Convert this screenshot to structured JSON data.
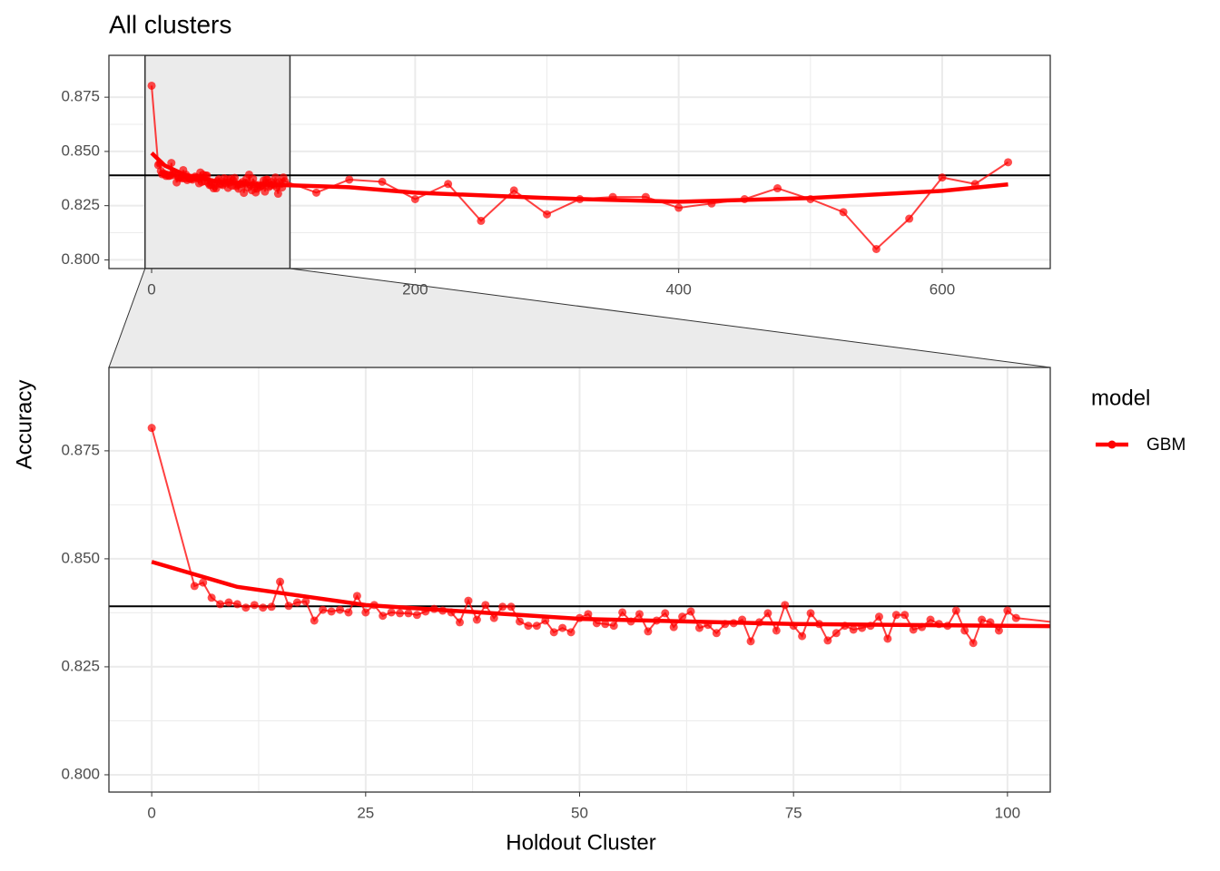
{
  "chart_data": {
    "type": "line",
    "title": "All clusters",
    "x_label": "Holdout Cluster",
    "y_label": "Accuracy",
    "legend_title": "model",
    "series": [
      {
        "name": "GBM",
        "color": "#ff0000",
        "x": [
          0,
          5,
          6,
          7,
          8,
          9,
          10,
          11,
          12,
          13,
          14,
          15,
          16,
          17,
          18,
          19,
          20,
          21,
          22,
          23,
          24,
          25,
          26,
          27,
          28,
          29,
          30,
          31,
          32,
          33,
          34,
          35,
          36,
          37,
          38,
          39,
          40,
          41,
          42,
          43,
          44,
          45,
          46,
          47,
          48,
          49,
          50,
          51,
          52,
          53,
          54,
          55,
          56,
          57,
          58,
          59,
          60,
          61,
          62,
          63,
          64,
          65,
          66,
          67,
          68,
          69,
          70,
          71,
          72,
          73,
          74,
          75,
          76,
          77,
          78,
          79,
          80,
          81,
          82,
          83,
          84,
          85,
          86,
          87,
          88,
          89,
          90,
          91,
          92,
          93,
          94,
          95,
          96,
          97,
          98,
          99,
          100,
          101,
          125,
          150,
          175,
          200,
          225,
          250,
          275,
          300,
          325,
          350,
          375,
          400,
          425,
          450,
          475,
          500,
          525,
          550,
          575,
          600,
          625,
          650
        ],
        "values": [
          0.8803,
          0.8437,
          0.8445,
          0.841,
          0.8395,
          0.8399,
          0.8395,
          0.8387,
          0.8393,
          0.8387,
          0.8389,
          0.8447,
          0.8391,
          0.8399,
          0.8401,
          0.8357,
          0.8382,
          0.8378,
          0.8382,
          0.8376,
          0.8414,
          0.8376,
          0.8393,
          0.8368,
          0.8376,
          0.8374,
          0.8374,
          0.837,
          0.8378,
          0.8384,
          0.838,
          0.8376,
          0.8353,
          0.8403,
          0.8359,
          0.8393,
          0.8363,
          0.8389,
          0.8389,
          0.8355,
          0.8345,
          0.8345,
          0.8357,
          0.833,
          0.834,
          0.833,
          0.8363,
          0.8372,
          0.8351,
          0.8349,
          0.8345,
          0.8376,
          0.8355,
          0.8372,
          0.8332,
          0.8357,
          0.8374,
          0.8342,
          0.8366,
          0.8378,
          0.834,
          0.8347,
          0.8328,
          0.8349,
          0.8351,
          0.8359,
          0.8309,
          0.8353,
          0.8374,
          0.8334,
          0.8393,
          0.8345,
          0.8321,
          0.8374,
          0.8349,
          0.8311,
          0.8328,
          0.8345,
          0.8336,
          0.834,
          0.8345,
          0.8366,
          0.8315,
          0.837,
          0.837,
          0.8336,
          0.8342,
          0.8359,
          0.8349,
          0.8345,
          0.838,
          0.8334,
          0.8305,
          0.8359,
          0.8353,
          0.8334,
          0.838,
          0.8363,
          0.831,
          0.837,
          0.836,
          0.828,
          0.835,
          0.818,
          0.832,
          0.821,
          0.828,
          0.829,
          0.829,
          0.824,
          0.826,
          0.828,
          0.833,
          0.828,
          0.822,
          0.805,
          0.819,
          0.838,
          0.835,
          0.845
        ]
      }
    ],
    "smooth": {
      "x": [
        0,
        10,
        25,
        50,
        75,
        100,
        150,
        200,
        300,
        400,
        500,
        600,
        650
      ],
      "values": [
        0.8493,
        0.8435,
        0.8393,
        0.8361,
        0.8349,
        0.8345,
        0.8335,
        0.831,
        0.8285,
        0.8268,
        0.8285,
        0.8318,
        0.8348
      ]
    },
    "hline": 0.839,
    "panels": [
      {
        "xlim": [
          -32.4,
          682
        ],
        "ylim": [
          0.796,
          0.8943
        ],
        "xticks": [
          0,
          200,
          400,
          600
        ],
        "yticks": [
          {
            "value": 0.8,
            "label": "0.800"
          },
          {
            "value": 0.825,
            "label": "0.825"
          },
          {
            "value": 0.85,
            "label": "0.850"
          },
          {
            "value": 0.875,
            "label": "0.875"
          }
        ]
      },
      {
        "xlim": [
          -5,
          105
        ],
        "ylim": [
          0.796,
          0.8943
        ],
        "xticks": [
          0,
          25,
          50,
          75,
          100
        ],
        "yticks": [
          {
            "value": 0.8,
            "label": "0.800"
          },
          {
            "value": 0.825,
            "label": "0.825"
          },
          {
            "value": 0.85,
            "label": "0.850"
          },
          {
            "value": 0.875,
            "label": "0.875"
          }
        ]
      }
    ],
    "grid": true
  }
}
